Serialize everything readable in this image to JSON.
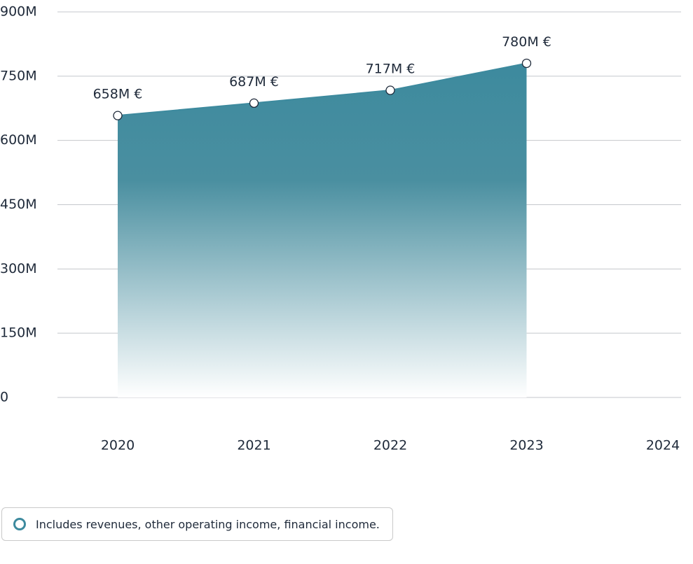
{
  "chart_data": {
    "type": "area",
    "categories": [
      "2020",
      "2021",
      "2022",
      "2023",
      "2024"
    ],
    "series": [
      {
        "name": "Includes revenues, other operating income, financial income.",
        "color": "#3d8a9e",
        "values": [
          658,
          687,
          717,
          780,
          null
        ],
        "value_labels": [
          "658M €",
          "687M €",
          "717M €",
          "780M €",
          null
        ]
      }
    ],
    "ylim": [
      0,
      900
    ],
    "yticks": [
      0,
      {
        "value": 150,
        "label": "150M"
      },
      {
        "value": 300,
        "label": "300M"
      },
      {
        "value": 450,
        "label": "450M"
      },
      {
        "value": 600,
        "label": "600M"
      },
      {
        "value": 750,
        "label": "750M"
      },
      {
        "value": 900,
        "label": "900M"
      }
    ],
    "grid": true,
    "legend": "bottom-left"
  }
}
